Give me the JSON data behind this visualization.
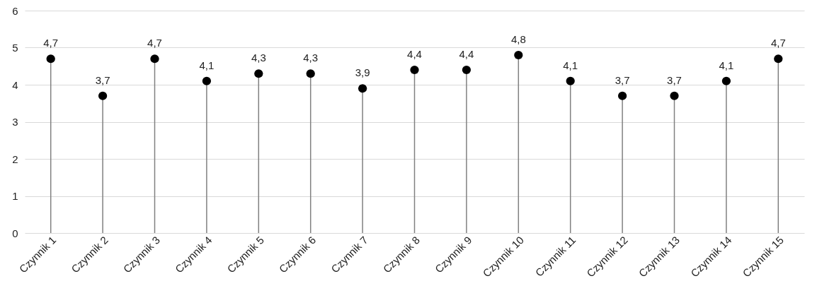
{
  "chart_data": {
    "type": "lollipop",
    "categories": [
      "Czynnik 1",
      "Czynnik 2",
      "Czynnik 3",
      "Czynnik 4",
      "Czynnik 5",
      "Czynnik 6",
      "Czynnik 7",
      "Czynnik 8",
      "Czynnik 9",
      "Czynnik 10",
      "Czynnik 11",
      "Czynnik 12",
      "Czynnik 13",
      "Czynnik 14",
      "Czynnik 15"
    ],
    "values": [
      4.7,
      3.7,
      4.7,
      4.1,
      4.3,
      4.3,
      3.9,
      4.4,
      4.4,
      4.8,
      4.1,
      3.7,
      3.7,
      4.1,
      4.7
    ],
    "value_labels": [
      "4,7",
      "3,7",
      "4,7",
      "4,1",
      "4,3",
      "4,3",
      "3,9",
      "4,4",
      "4,4",
      "4,8",
      "4,1",
      "3,7",
      "3,7",
      "4,1",
      "4,7"
    ],
    "color": "#000000",
    "marker": "circle",
    "ylim": [
      0,
      6
    ],
    "yticks": [
      0,
      1,
      2,
      3,
      4,
      5,
      6
    ],
    "grid": "y"
  }
}
